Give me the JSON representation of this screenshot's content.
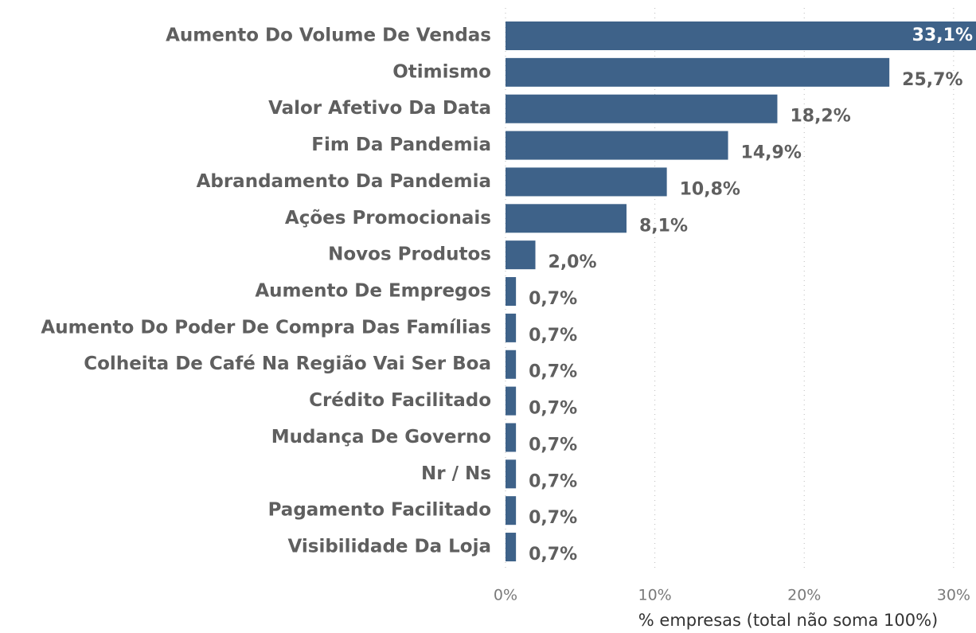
{
  "chart_data": {
    "type": "hbar",
    "x_label": "% empresas (total não soma 100%)",
    "categories": [
      "Aumento Do Volume De Vendas",
      "Otimismo",
      "Valor Afetivo Da Data",
      "Fim Da Pandemia",
      "Abrandamento Da Pandemia",
      "Ações Promocionais",
      "Novos Produtos",
      "Aumento De Empregos",
      "Aumento Do Poder De Compra Das Famílias",
      "Colheita De Café Na Região Vai Ser Boa",
      "Crédito Facilitado",
      "Mudança De Governo",
      "Nr / Ns",
      "Pagamento Facilitado",
      "Visibilidade Da Loja"
    ],
    "values": [
      33.1,
      25.7,
      18.2,
      14.9,
      10.8,
      8.1,
      2.0,
      0.7,
      0.7,
      0.7,
      0.7,
      0.7,
      0.7,
      0.7,
      0.7
    ],
    "value_labels": [
      "33,1%",
      "25,7%",
      "18,2%",
      "14,9%",
      "10,8%",
      "8,1%",
      "2,0%",
      "0,7%",
      "0,7%",
      "0,7%",
      "0,7%",
      "0,7%",
      "0,7%",
      "0,7%",
      "0,7%"
    ],
    "color": "#3e6289",
    "xlim": [
      0,
      31.5
    ],
    "xticks": [
      {
        "value": 0,
        "label": "0%"
      },
      {
        "value": 10,
        "label": "10%"
      },
      {
        "value": 20,
        "label": "20%"
      },
      {
        "value": 30,
        "label": "30%"
      }
    ],
    "grid": true
  }
}
